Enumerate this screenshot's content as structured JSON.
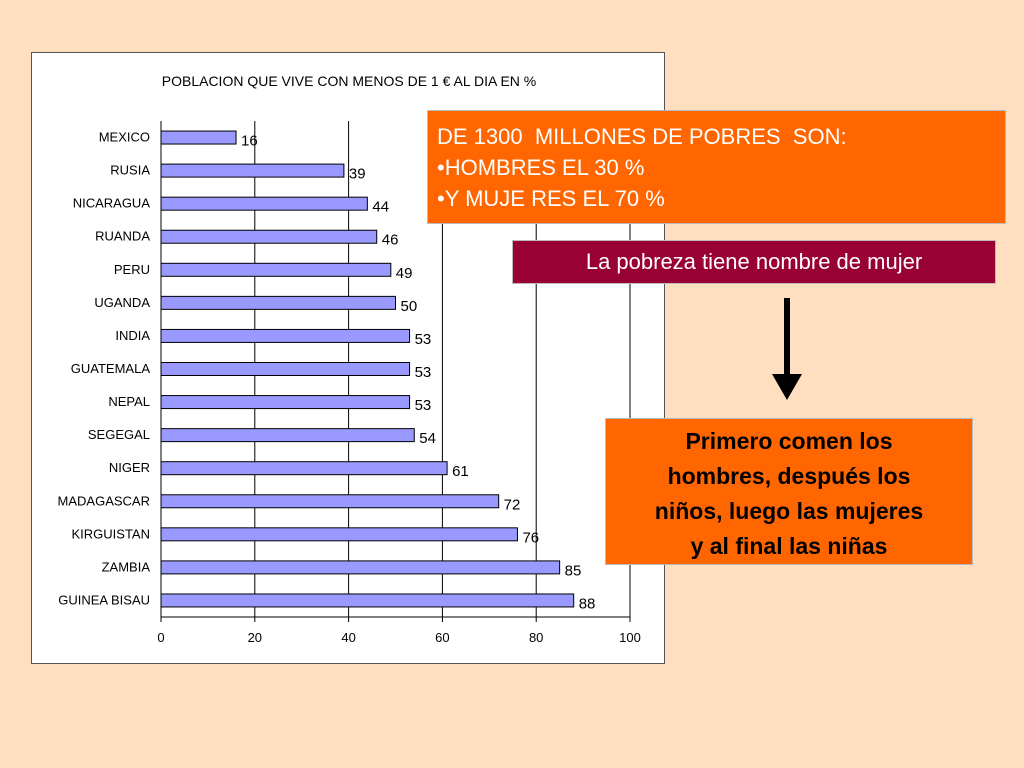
{
  "chart_data": {
    "type": "bar",
    "orientation": "horizontal",
    "title": "POBLACION QUE VIVE CON MENOS DE 1 € AL DIA EN %",
    "categories": [
      "MEXICO",
      "RUSIA",
      "NICARAGUA",
      "RUANDA",
      "PERU",
      "UGANDA",
      "INDIA",
      "GUATEMALA",
      "NEPAL",
      "SEGEGAL",
      "NIGER",
      "MADAGASCAR",
      "KIRGUISTAN",
      "ZAMBIA",
      "GUINEA BISAU"
    ],
    "values": [
      16,
      39,
      44,
      46,
      49,
      50,
      53,
      53,
      53,
      54,
      61,
      72,
      76,
      85,
      88
    ],
    "xlim": [
      0,
      100
    ],
    "xticks": [
      "0",
      "20",
      "40",
      "60",
      "80",
      "100"
    ],
    "grid": "vertical",
    "bar_color": "#9999FF",
    "data_labels": true
  },
  "box1": {
    "lines": [
      "DE 1300  MILLONES DE POBRES  SON:",
      "•HOMBRES EL 30 %",
      "•Y MUJE RES EL 70 %"
    ],
    "bg_color": "#FF6600"
  },
  "box2": {
    "text": "La pobreza tiene nombre de mujer",
    "bg_color": "#990033"
  },
  "box3": {
    "lines": [
      "Primero comen los",
      "hombres, después los",
      "niños, luego las mujeres",
      "y al final las niñas"
    ],
    "bg_color": "#FF6600"
  },
  "arrow": {
    "icon": "arrow-down-icon",
    "direction": "down"
  }
}
